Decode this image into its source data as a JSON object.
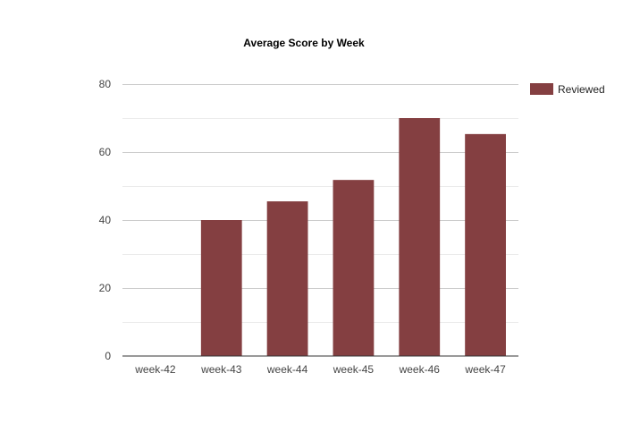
{
  "chart_data": {
    "type": "bar",
    "title": "Average Score by Week",
    "xlabel": "",
    "ylabel": "",
    "categories": [
      "week-42",
      "week-43",
      "week-44",
      "week-45",
      "week-46",
      "week-47"
    ],
    "series": [
      {
        "name": "Reviewed",
        "color": "#843f41",
        "values": [
          0,
          40,
          45.5,
          51.8,
          70,
          65.3
        ]
      }
    ],
    "ylim": [
      0,
      80
    ],
    "yticks": [
      0,
      20,
      40,
      60,
      80
    ],
    "grid": true,
    "minor_grid": true,
    "legend": "right"
  }
}
